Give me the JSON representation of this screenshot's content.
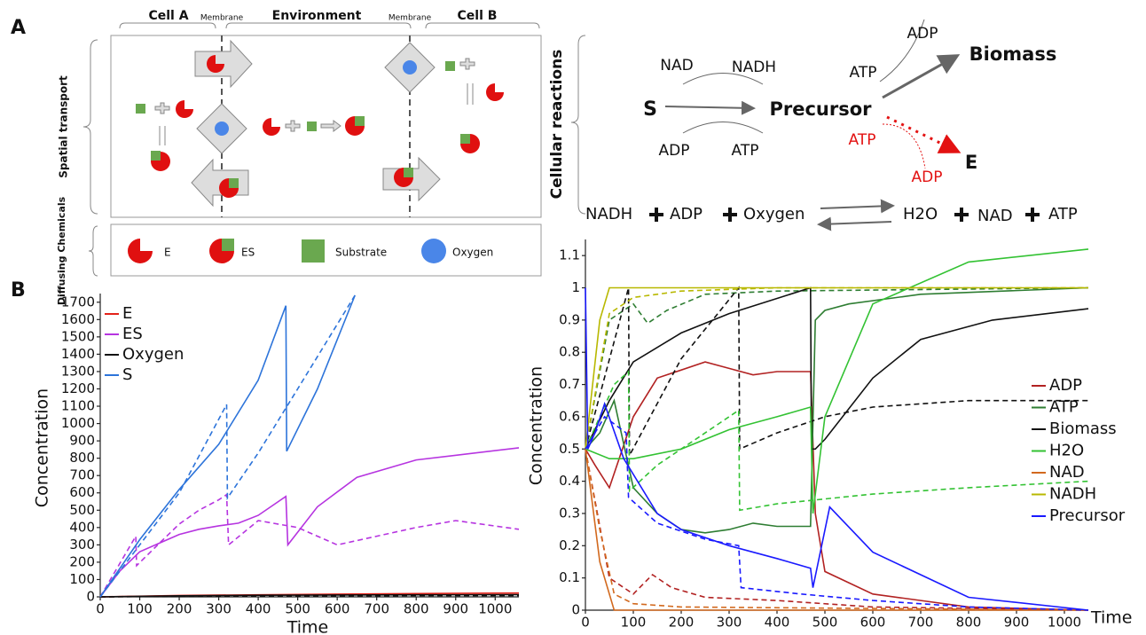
{
  "panel_labels": [
    "A",
    "B"
  ],
  "transport_diagram": {
    "headers": [
      "Cell A",
      "Membrane",
      "Environment",
      "Membrane",
      "Cell B"
    ],
    "side_labels": [
      "Spatial transport",
      "Diffusing Chemicals"
    ],
    "legend": [
      "E",
      "ES",
      "Substrate",
      "Oxygen"
    ]
  },
  "reaction_diagram": {
    "side_label": "Cellular reactions",
    "s": "S",
    "precursor": "Precursor",
    "biomass": "Biomass",
    "e": "E",
    "top_cofactors": [
      "NAD",
      "NADH"
    ],
    "bottom_cofactors": [
      "ADP",
      "ATP"
    ],
    "biomass_cofactors": [
      "ADP",
      "ATP"
    ],
    "red_cofactors": [
      "ATP",
      "ADP"
    ],
    "equation": [
      "NADH",
      "ADP",
      "Oxygen",
      "H2O",
      "NAD",
      "ATP"
    ]
  },
  "chart_data": [
    {
      "type": "line",
      "x_label": "Time",
      "y_label": "Concentration",
      "xlim": [
        0,
        1060
      ],
      "ylim": [
        0,
        1750
      ],
      "xticks": [
        0,
        100,
        200,
        300,
        400,
        500,
        600,
        700,
        800,
        900,
        1000
      ],
      "yticks": [
        0,
        100,
        200,
        300,
        400,
        500,
        600,
        700,
        800,
        900,
        1000,
        1100,
        1200,
        1300,
        1400,
        1500,
        1600,
        1700
      ],
      "series": [
        {
          "name": "E",
          "color": "#e32219",
          "lines": [
            {
              "dashed": false,
              "x": [
                0,
                200,
                400,
                600,
                800,
                1060
              ],
              "values": [
                0,
                8,
                12,
                16,
                19,
                22
              ]
            },
            {
              "dashed": true,
              "x": [
                0,
                200,
                400,
                600,
                800,
                1060
              ],
              "values": [
                0,
                5,
                7,
                9,
                10,
                11
              ]
            }
          ]
        },
        {
          "name": "ES",
          "color": "#b634e0",
          "lines": [
            {
              "dashed": false,
              "x": [
                0,
                50,
                100,
                150,
                200,
                250,
                300,
                350,
                400,
                470,
                475,
                550,
                650,
                800,
                1060
              ],
              "values": [
                0,
                150,
                260,
                310,
                360,
                390,
                410,
                425,
                470,
                580,
                300,
                520,
                690,
                790,
                860
              ]
            },
            {
              "dashed": true,
              "x": [
                0,
                90,
                92,
                150,
                200,
                250,
                300,
                320,
                325,
                400,
                500,
                600,
                700,
                800,
                900,
                1060
              ],
              "values": [
                0,
                350,
                180,
                310,
                420,
                500,
                560,
                590,
                300,
                440,
                400,
                300,
                350,
                400,
                440,
                390
              ]
            }
          ]
        },
        {
          "name": "Oxygen",
          "color": "#111111",
          "lines": [
            {
              "dashed": false,
              "x": [
                0,
                200,
                400,
                600,
                800,
                1060
              ],
              "values": [
                0,
                6,
                9,
                11,
                12,
                13
              ]
            },
            {
              "dashed": true,
              "x": [
                0,
                200,
                400,
                600,
                800,
                1060
              ],
              "values": [
                0,
                3,
                5,
                6,
                7,
                7
              ]
            }
          ]
        },
        {
          "name": "S",
          "color": "#2d74da",
          "lines": [
            {
              "dashed": false,
              "x": [
                0,
                100,
                200,
                300,
                400,
                470,
                472,
                550,
                645
              ],
              "values": [
                0,
                330,
                620,
                880,
                1250,
                1680,
                840,
                1200,
                1740
              ]
            },
            {
              "dashed": true,
              "x": [
                0,
                100,
                200,
                320,
                322,
                400,
                500,
                645
              ],
              "values": [
                0,
                300,
                600,
                1110,
                570,
                830,
                1200,
                1740
              ]
            }
          ]
        }
      ]
    },
    {
      "type": "line",
      "x_label": "Time",
      "y_label": "Concentration",
      "xlim": [
        0,
        1050
      ],
      "ylim": [
        0,
        1.15
      ],
      "xticks": [
        0,
        100,
        200,
        300,
        400,
        500,
        600,
        700,
        800,
        900,
        1000
      ],
      "yticks": [
        0,
        0.1,
        0.2,
        0.3,
        0.4,
        0.5,
        0.6,
        0.7,
        0.8,
        0.9,
        1,
        1.1
      ],
      "series": [
        {
          "name": "ADP",
          "color": "#b22222",
          "lines": [
            {
              "dashed": false,
              "x": [
                0,
                20,
                50,
                100,
                150,
                250,
                300,
                350,
                400,
                470,
                480,
                500,
                600,
                800,
                1050
              ],
              "values": [
                0.5,
                0.45,
                0.38,
                0.6,
                0.72,
                0.77,
                0.75,
                0.73,
                0.74,
                0.74,
                0.3,
                0.12,
                0.05,
                0.01,
                0
              ]
            },
            {
              "dashed": true,
              "x": [
                0,
                50,
                100,
                140,
                180,
                250,
                400,
                600,
                1050
              ],
              "values": [
                0.5,
                0.1,
                0.05,
                0.11,
                0.07,
                0.04,
                0.03,
                0.01,
                0
              ]
            }
          ]
        },
        {
          "name": "ATP",
          "color": "#2e7d32",
          "lines": [
            {
              "dashed": false,
              "x": [
                0,
                30,
                60,
                100,
                150,
                200,
                250,
                300,
                350,
                400,
                470,
                480,
                500,
                550,
                700,
                1050
              ],
              "values": [
                0.5,
                0.55,
                0.65,
                0.38,
                0.3,
                0.25,
                0.24,
                0.25,
                0.27,
                0.26,
                0.26,
                0.9,
                0.93,
                0.95,
                0.98,
                1
              ]
            },
            {
              "dashed": true,
              "x": [
                0,
                50,
                100,
                130,
                170,
                250,
                400,
                1050
              ],
              "values": [
                0.5,
                0.9,
                0.95,
                0.89,
                0.93,
                0.98,
                0.99,
                1
              ]
            }
          ]
        },
        {
          "name": "Biomass",
          "color": "#111111",
          "lines": [
            {
              "dashed": false,
              "x": [
                0,
                50,
                100,
                200,
                300,
                470,
                472,
                480,
                500,
                600,
                700,
                850,
                1050
              ],
              "values": [
                0.5,
                0.65,
                0.77,
                0.86,
                0.92,
                1,
                0.5,
                0.5,
                0.53,
                0.72,
                0.84,
                0.9,
                0.935
              ]
            },
            {
              "dashed": true,
              "x": [
                0,
                90,
                92,
                200,
                320,
                322,
                400,
                500,
                600,
                800,
                1050
              ],
              "values": [
                0.5,
                1,
                0.48,
                0.78,
                1,
                0.5,
                0.55,
                0.6,
                0.63,
                0.65,
                0.65
              ]
            }
          ]
        },
        {
          "name": "H2O",
          "color": "#33c233",
          "lines": [
            {
              "dashed": false,
              "x": [
                0,
                50,
                100,
                200,
                300,
                400,
                470,
                475,
                500,
                600,
                800,
                1050
              ],
              "values": [
                0.5,
                0.47,
                0.47,
                0.5,
                0.56,
                0.6,
                0.63,
                0.3,
                0.6,
                0.95,
                1.08,
                1.12
              ]
            },
            {
              "dashed": true,
              "x": [
                0,
                60,
                90,
                92,
                150,
                250,
                320,
                322,
                400,
                600,
                800,
                1050
              ],
              "values": [
                0.5,
                0.7,
                0.74,
                0.37,
                0.45,
                0.55,
                0.62,
                0.31,
                0.33,
                0.36,
                0.38,
                0.4
              ]
            }
          ]
        },
        {
          "name": "NAD",
          "color": "#d2691e",
          "lines": [
            {
              "dashed": false,
              "x": [
                0,
                30,
                60,
                100,
                1050
              ],
              "values": [
                0.5,
                0.15,
                0,
                0,
                0
              ]
            },
            {
              "dashed": true,
              "x": [
                0,
                30,
                60,
                100,
                200,
                1050
              ],
              "values": [
                0.5,
                0.25,
                0.05,
                0.02,
                0.01,
                0
              ]
            }
          ]
        },
        {
          "name": "NADH",
          "color": "#b8b800",
          "lines": [
            {
              "dashed": false,
              "x": [
                0,
                30,
                50,
                100,
                1050
              ],
              "values": [
                0.5,
                0.9,
                1,
                1,
                1
              ]
            },
            {
              "dashed": true,
              "x": [
                0,
                50,
                100,
                200,
                400,
                1050
              ],
              "values": [
                0.5,
                0.92,
                0.97,
                0.99,
                1,
                1
              ]
            }
          ]
        },
        {
          "name": "Precursor",
          "color": "#1a1aff",
          "lines": [
            {
              "dashed": false,
              "x": [
                0,
                5,
                20,
                40,
                80,
                150,
                200,
                300,
                400,
                470,
                475,
                510,
                600,
                800,
                1050
              ],
              "values": [
                1,
                0.5,
                0.55,
                0.64,
                0.47,
                0.3,
                0.25,
                0.2,
                0.16,
                0.13,
                0.07,
                0.32,
                0.18,
                0.04,
                0
              ]
            },
            {
              "dashed": true,
              "x": [
                0,
                40,
                85,
                90,
                150,
                250,
                320,
                325,
                450,
                600,
                800,
                1050
              ],
              "values": [
                0.5,
                0.6,
                0.55,
                0.35,
                0.27,
                0.22,
                0.2,
                0.07,
                0.05,
                0.03,
                0.01,
                0
              ]
            }
          ]
        }
      ]
    }
  ]
}
